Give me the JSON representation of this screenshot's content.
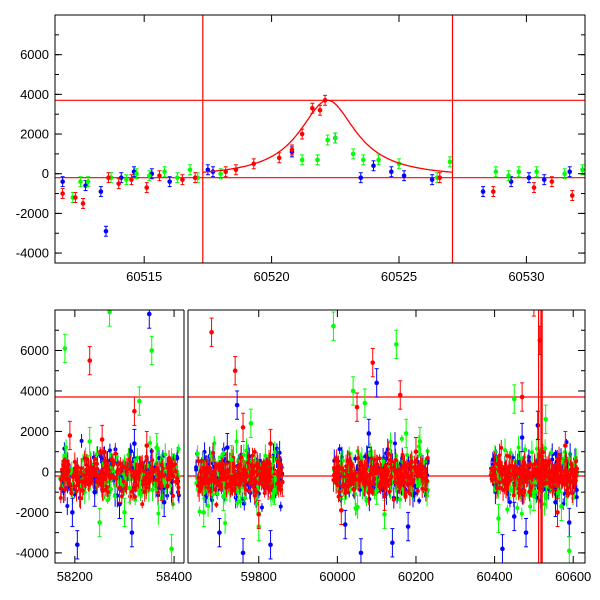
{
  "chart_data": [
    {
      "type": "scatter",
      "panel": "top",
      "xlim": [
        60511.5,
        60532.3
      ],
      "ylim": [
        -4500,
        8000
      ],
      "x_ticks": [
        60515,
        60520,
        60525,
        60530
      ],
      "y_ticks": [
        -4000,
        -2000,
        0,
        2000,
        4000,
        6000
      ],
      "ref_lines_y": [
        3700,
        -200
      ],
      "ref_lines_x": [
        60517.3,
        60527.1
      ],
      "model_curve": {
        "peak_x": 60522.2,
        "peak_y": 3700,
        "baseline": -200,
        "width": 1.35,
        "x_range": [
          60517.3,
          60527.1
        ]
      },
      "colors": {
        "blue": "#0000ff",
        "green": "#00ff00",
        "red": "#ff0000"
      },
      "series": [
        {
          "color": "blue",
          "points": [
            [
              60511.8,
              -400
            ],
            [
              60512.7,
              -600
            ],
            [
              60513.3,
              -900
            ],
            [
              60513.5,
              -2900
            ],
            [
              60514.1,
              -200
            ],
            [
              60514.6,
              100
            ],
            [
              60515.3,
              0
            ],
            [
              60516.0,
              -400
            ],
            [
              60517.5,
              200
            ],
            [
              60517.7,
              100
            ],
            [
              60520.8,
              1100
            ],
            [
              60522.5,
              1800
            ],
            [
              60523.5,
              -200
            ],
            [
              60524.0,
              400
            ],
            [
              60524.7,
              100
            ],
            [
              60525.2,
              -100
            ],
            [
              60526.3,
              -300
            ],
            [
              60528.3,
              -900
            ],
            [
              60529.4,
              -400
            ],
            [
              60530.1,
              -200
            ],
            [
              60530.7,
              -300
            ],
            [
              60531.7,
              100
            ]
          ]
        },
        {
          "color": "green",
          "points": [
            [
              60512.2,
              -1200
            ],
            [
              60512.5,
              -400
            ],
            [
              60512.8,
              -400
            ],
            [
              60513.7,
              -200
            ],
            [
              60514.3,
              -300
            ],
            [
              60514.7,
              0
            ],
            [
              60515.2,
              -100
            ],
            [
              60515.8,
              100
            ],
            [
              60516.3,
              -200
            ],
            [
              60516.8,
              200
            ],
            [
              60517.1,
              -200
            ],
            [
              60518.0,
              0
            ],
            [
              60521.2,
              700
            ],
            [
              60521.8,
              700
            ],
            [
              60522.2,
              1700
            ],
            [
              60522.5,
              1800
            ],
            [
              60523.2,
              1000
            ],
            [
              60523.6,
              700
            ],
            [
              60524.2,
              700
            ],
            [
              60525.0,
              500
            ],
            [
              60526.5,
              -200
            ],
            [
              60527.0,
              600
            ],
            [
              60528.8,
              100
            ],
            [
              60529.3,
              -100
            ],
            [
              60529.7,
              100
            ],
            [
              60530.4,
              100
            ],
            [
              60531.5,
              0
            ],
            [
              60532.2,
              200
            ]
          ]
        },
        {
          "color": "red",
          "points": [
            [
              60511.8,
              -1000
            ],
            [
              60512.3,
              -1200
            ],
            [
              60512.6,
              -1500
            ],
            [
              60513.6,
              -200
            ],
            [
              60514.0,
              -500
            ],
            [
              60514.5,
              -300
            ],
            [
              60515.1,
              -700
            ],
            [
              60515.6,
              -100
            ],
            [
              60516.5,
              -300
            ],
            [
              60517.0,
              -200
            ],
            [
              60518.2,
              100
            ],
            [
              60518.6,
              200
            ],
            [
              60519.3,
              500
            ],
            [
              60520.3,
              800
            ],
            [
              60520.8,
              1200
            ],
            [
              60521.2,
              2000
            ],
            [
              60521.6,
              3300
            ],
            [
              60521.9,
              3200
            ],
            [
              60522.1,
              3700
            ],
            [
              60526.6,
              -200
            ],
            [
              60528.7,
              -900
            ],
            [
              60530.3,
              -700
            ],
            [
              60531.0,
              -400
            ],
            [
              60531.8,
              -1100
            ]
          ]
        }
      ]
    },
    {
      "type": "scatter",
      "panel": "bottom",
      "xlim": [
        58130,
        60620
      ],
      "ylim": [
        -4500,
        8000
      ],
      "x_ticks": [
        58200,
        58400,
        59800,
        60000,
        60200,
        60400,
        60600
      ],
      "y_ticks": [
        -4000,
        -2000,
        0,
        2000,
        4000,
        6000
      ],
      "ref_lines_y": [
        3700,
        -200
      ],
      "segments": [
        {
          "x_range": [
            58160,
            58420
          ],
          "cluster_center": [
            58170,
            58410
          ]
        },
        {
          "x_range": [
            59620,
            60630
          ],
          "cluster_center": [
            59640,
            59860
          ]
        }
      ],
      "clusters": [
        {
          "x_range": [
            58170,
            58410
          ]
        },
        {
          "x_range": [
            59640,
            59860
          ]
        },
        {
          "x_range": [
            59990,
            60230
          ]
        },
        {
          "x_range": [
            60390,
            60610
          ]
        }
      ],
      "colors": {
        "blue": "#0000ff",
        "green": "#00ff00",
        "red": "#ff0000"
      },
      "series": [
        {
          "color": "blue",
          "points": [
            [
              58195,
              -2000
            ],
            [
              58205,
              -3600
            ],
            [
              58240,
              -1000
            ],
            [
              58290,
              -1600
            ],
            [
              58315,
              -3000
            ],
            [
              58350,
              7800
            ],
            [
              58380,
              -1500
            ],
            [
              58320,
              1400
            ],
            [
              59700,
              -3000
            ],
            [
              59760,
              -4000
            ],
            [
              59830,
              -3600
            ],
            [
              59745,
              3300
            ],
            [
              59720,
              1200
            ],
            [
              60020,
              -2600
            ],
            [
              60060,
              -4000
            ],
            [
              60100,
              4400
            ],
            [
              60140,
              -3500
            ],
            [
              60180,
              -2700
            ],
            [
              60080,
              1900
            ],
            [
              60420,
              -3800
            ],
            [
              60450,
              -2200
            ],
            [
              60480,
              -3000
            ],
            [
              60510,
              2300
            ],
            [
              60555,
              -1500
            ],
            [
              60590,
              -2500
            ],
            [
              60470,
              1700
            ]
          ]
        },
        {
          "color": "green",
          "points": [
            [
              58180,
              6100
            ],
            [
              58230,
              1500
            ],
            [
              58250,
              -2500
            ],
            [
              58270,
              7900
            ],
            [
              58300,
              -2000
            ],
            [
              58330,
              3500
            ],
            [
              58355,
              6000
            ],
            [
              58365,
              1200
            ],
            [
              58395,
              -3800
            ],
            [
              58310,
              -800
            ],
            [
              59660,
              -2000
            ],
            [
              59710,
              -1200
            ],
            [
              59780,
              2400
            ],
            [
              59800,
              -2700
            ],
            [
              59840,
              -900
            ],
            [
              59730,
              600
            ],
            [
              59990,
              7200
            ],
            [
              60040,
              4000
            ],
            [
              60070,
              3400
            ],
            [
              60120,
              -2100
            ],
            [
              60150,
              6300
            ],
            [
              60175,
              1900
            ],
            [
              60210,
              1500
            ],
            [
              60100,
              -900
            ],
            [
              60410,
              -2300
            ],
            [
              60450,
              3600
            ],
            [
              60500,
              -1200
            ],
            [
              60530,
              2600
            ],
            [
              60590,
              -3900
            ],
            [
              60570,
              -1700
            ]
          ]
        },
        {
          "color": "red",
          "points": [
            [
              58190,
              1800
            ],
            [
              58230,
              5500
            ],
            [
              58255,
              1600
            ],
            [
              58290,
              -800
            ],
            [
              58320,
              3000
            ],
            [
              58345,
              1300
            ],
            [
              58375,
              -700
            ],
            [
              59680,
              6900
            ],
            [
              59740,
              5000
            ],
            [
              59760,
              2200
            ],
            [
              59800,
              -2100
            ],
            [
              59830,
              1400
            ],
            [
              59860,
              -500
            ],
            [
              60010,
              -1900
            ],
            [
              60050,
              3200
            ],
            [
              60090,
              5400
            ],
            [
              60120,
              -1200
            ],
            [
              60160,
              3800
            ],
            [
              60200,
              1000
            ],
            [
              60470,
              3700
            ],
            [
              60500,
              8400
            ],
            [
              60515,
              6500
            ],
            [
              60540,
              -300
            ],
            [
              60560,
              -2000
            ],
            [
              60580,
              1300
            ]
          ]
        }
      ]
    }
  ]
}
